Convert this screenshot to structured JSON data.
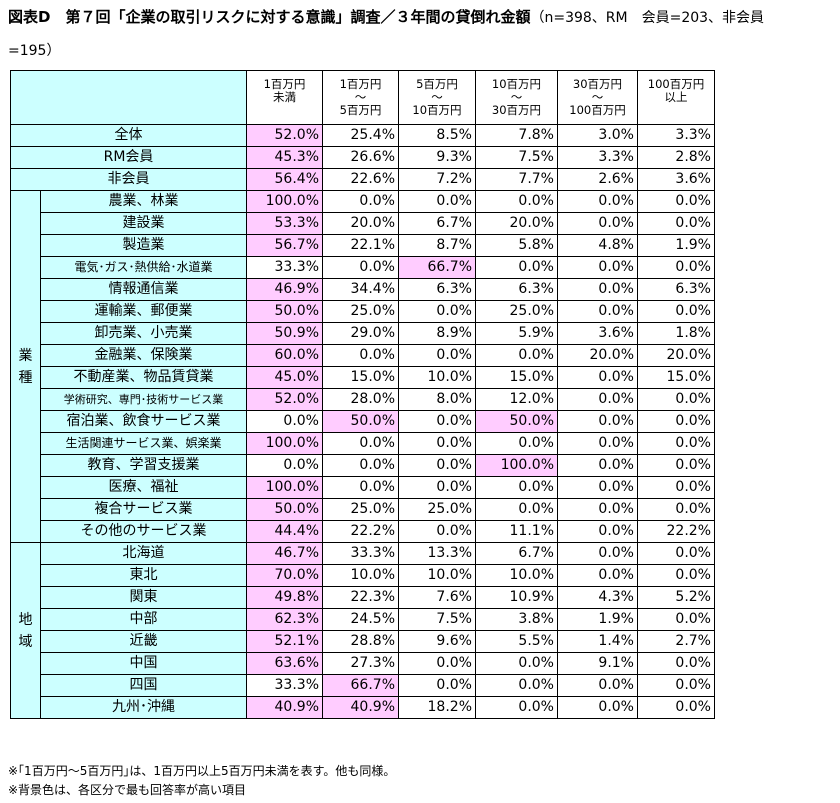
{
  "title": "図表D　第７回「企業の取引リスクに対する意識」調査／３年間の貸倒れ金額",
  "subtitle": "（n=398、RM　会員=203、非会員",
  "subtitle2": "=195）",
  "columns": [
    [
      "1百万円",
      "未満",
      ""
    ],
    [
      "1百万円",
      "～",
      "5百万円"
    ],
    [
      "5百万円",
      "～",
      "10百万円"
    ],
    [
      "10百万円",
      "～",
      "30百万円"
    ],
    [
      "30百万円",
      "～",
      "100百万円"
    ],
    [
      "100百万円",
      "以上",
      ""
    ]
  ],
  "summary_rows": [
    {
      "label": "全体",
      "values": [
        "52.0%",
        "25.4%",
        "8.5%",
        "7.8%",
        "3.0%",
        "3.3%"
      ],
      "hl": [
        0
      ]
    },
    {
      "label": "RM会員",
      "values": [
        "45.3%",
        "26.6%",
        "9.3%",
        "7.5%",
        "3.3%",
        "2.8%"
      ],
      "hl": [
        0
      ]
    },
    {
      "label": "非会員",
      "values": [
        "56.4%",
        "22.6%",
        "7.2%",
        "7.7%",
        "2.6%",
        "3.6%"
      ],
      "hl": [
        0
      ]
    }
  ],
  "groups": [
    {
      "name": "業種",
      "rows": [
        {
          "label": "農業、林業",
          "values": [
            "100.0%",
            "0.0%",
            "0.0%",
            "0.0%",
            "0.0%",
            "0.0%"
          ],
          "hl": [
            0
          ]
        },
        {
          "label": "建設業",
          "values": [
            "53.3%",
            "20.0%",
            "6.7%",
            "20.0%",
            "0.0%",
            "0.0%"
          ],
          "hl": [
            0
          ]
        },
        {
          "label": "製造業",
          "values": [
            "56.7%",
            "22.1%",
            "8.7%",
            "5.8%",
            "4.8%",
            "1.9%"
          ],
          "hl": [
            0
          ]
        },
        {
          "label": "電気･ガス･熱供給･水道業",
          "values": [
            "33.3%",
            "0.0%",
            "66.7%",
            "0.0%",
            "0.0%",
            "0.0%"
          ],
          "hl": [
            2
          ],
          "size": "small"
        },
        {
          "label": "情報通信業",
          "values": [
            "46.9%",
            "34.4%",
            "6.3%",
            "6.3%",
            "0.0%",
            "6.3%"
          ],
          "hl": [
            0
          ]
        },
        {
          "label": "運輸業、郵便業",
          "values": [
            "50.0%",
            "25.0%",
            "0.0%",
            "25.0%",
            "0.0%",
            "0.0%"
          ],
          "hl": [
            0
          ]
        },
        {
          "label": "卸売業、小売業",
          "values": [
            "50.9%",
            "29.0%",
            "8.9%",
            "5.9%",
            "3.6%",
            "1.8%"
          ],
          "hl": [
            0
          ]
        },
        {
          "label": "金融業、保険業",
          "values": [
            "60.0%",
            "0.0%",
            "0.0%",
            "0.0%",
            "20.0%",
            "20.0%"
          ],
          "hl": [
            0
          ]
        },
        {
          "label": "不動産業、物品賃貸業",
          "values": [
            "45.0%",
            "15.0%",
            "10.0%",
            "15.0%",
            "0.0%",
            "15.0%"
          ],
          "hl": [
            0
          ]
        },
        {
          "label": "学術研究、専門･技術サービス業",
          "values": [
            "52.0%",
            "28.0%",
            "8.0%",
            "12.0%",
            "0.0%",
            "0.0%"
          ],
          "hl": [
            0
          ],
          "size": "xsmall"
        },
        {
          "label": "宿泊業、飲食サービス業",
          "values": [
            "0.0%",
            "50.0%",
            "0.0%",
            "50.0%",
            "0.0%",
            "0.0%"
          ],
          "hl": [
            1,
            3
          ]
        },
        {
          "label": "生活関連サービス業、娯楽業",
          "values": [
            "100.0%",
            "0.0%",
            "0.0%",
            "0.0%",
            "0.0%",
            "0.0%"
          ],
          "hl": [
            0
          ],
          "size": "small"
        },
        {
          "label": "教育、学習支援業",
          "values": [
            "0.0%",
            "0.0%",
            "0.0%",
            "100.0%",
            "0.0%",
            "0.0%"
          ],
          "hl": [
            3
          ]
        },
        {
          "label": "医療、福祉",
          "values": [
            "100.0%",
            "0.0%",
            "0.0%",
            "0.0%",
            "0.0%",
            "0.0%"
          ],
          "hl": [
            0
          ]
        },
        {
          "label": "複合サービス業",
          "values": [
            "50.0%",
            "25.0%",
            "25.0%",
            "0.0%",
            "0.0%",
            "0.0%"
          ],
          "hl": [
            0
          ]
        },
        {
          "label": "その他のサービス業",
          "values": [
            "44.4%",
            "22.2%",
            "0.0%",
            "11.1%",
            "0.0%",
            "22.2%"
          ],
          "hl": [
            0
          ]
        }
      ]
    },
    {
      "name": "地域",
      "rows": [
        {
          "label": "北海道",
          "values": [
            "46.7%",
            "33.3%",
            "13.3%",
            "6.7%",
            "0.0%",
            "0.0%"
          ],
          "hl": [
            0
          ]
        },
        {
          "label": "東北",
          "values": [
            "70.0%",
            "10.0%",
            "10.0%",
            "10.0%",
            "0.0%",
            "0.0%"
          ],
          "hl": [
            0
          ]
        },
        {
          "label": "関東",
          "values": [
            "49.8%",
            "22.3%",
            "7.6%",
            "10.9%",
            "4.3%",
            "5.2%"
          ],
          "hl": [
            0
          ]
        },
        {
          "label": "中部",
          "values": [
            "62.3%",
            "24.5%",
            "7.5%",
            "3.8%",
            "1.9%",
            "0.0%"
          ],
          "hl": [
            0
          ]
        },
        {
          "label": "近畿",
          "values": [
            "52.1%",
            "28.8%",
            "9.6%",
            "5.5%",
            "1.4%",
            "2.7%"
          ],
          "hl": [
            0
          ]
        },
        {
          "label": "中国",
          "values": [
            "63.6%",
            "27.3%",
            "0.0%",
            "0.0%",
            "9.1%",
            "0.0%"
          ],
          "hl": [
            0
          ]
        },
        {
          "label": "四国",
          "values": [
            "33.3%",
            "66.7%",
            "0.0%",
            "0.0%",
            "0.0%",
            "0.0%"
          ],
          "hl": [
            1
          ]
        },
        {
          "label": "九州･沖縄",
          "values": [
            "40.9%",
            "40.9%",
            "18.2%",
            "0.0%",
            "0.0%",
            "0.0%"
          ],
          "hl": [
            0,
            1
          ]
        }
      ]
    }
  ],
  "notes": [
    "※｢1百万円～5百万円｣は、1百万円以上5百万円未満を表す。他も同様。",
    "※背景色は、各区分で最も回答率が高い項目"
  ]
}
